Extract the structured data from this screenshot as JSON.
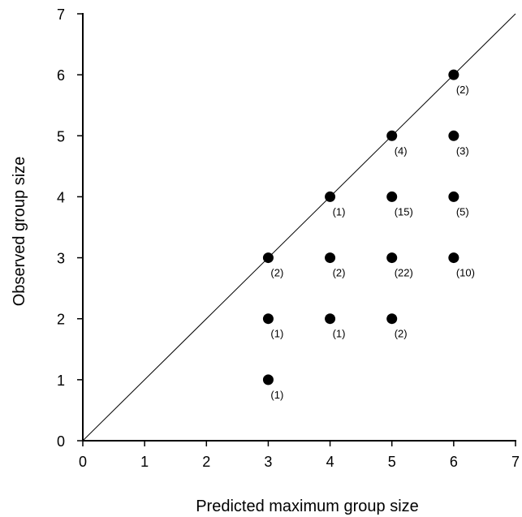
{
  "chart_data": {
    "type": "scatter",
    "xlabel": "Predicted maximum group size",
    "ylabel": "Observed group size",
    "xlim": [
      0,
      7
    ],
    "ylim": [
      0,
      7
    ],
    "x_ticks": [
      "0",
      "1",
      "2",
      "3",
      "4",
      "5",
      "6",
      "7"
    ],
    "y_ticks": [
      "0",
      "1",
      "2",
      "3",
      "4",
      "5",
      "6",
      "7"
    ],
    "grid": false,
    "reference_line": {
      "from": [
        0,
        0
      ],
      "to": [
        7,
        7
      ]
    },
    "points": [
      {
        "x": 3,
        "y": 1,
        "label": "(1)"
      },
      {
        "x": 3,
        "y": 2,
        "label": "(1)"
      },
      {
        "x": 3,
        "y": 3,
        "label": "(2)"
      },
      {
        "x": 4,
        "y": 2,
        "label": "(1)"
      },
      {
        "x": 4,
        "y": 3,
        "label": "(2)"
      },
      {
        "x": 4,
        "y": 4,
        "label": "(1)"
      },
      {
        "x": 5,
        "y": 2,
        "label": "(2)"
      },
      {
        "x": 5,
        "y": 3,
        "label": "(22)"
      },
      {
        "x": 5,
        "y": 4,
        "label": "(15)"
      },
      {
        "x": 5,
        "y": 5,
        "label": "(4)"
      },
      {
        "x": 6,
        "y": 3,
        "label": "(10)"
      },
      {
        "x": 6,
        "y": 4,
        "label": "(5)"
      },
      {
        "x": 6,
        "y": 5,
        "label": "(3)"
      },
      {
        "x": 6,
        "y": 6,
        "label": "(2)"
      }
    ],
    "marker_color": "#000000",
    "line_color": "#000000"
  }
}
